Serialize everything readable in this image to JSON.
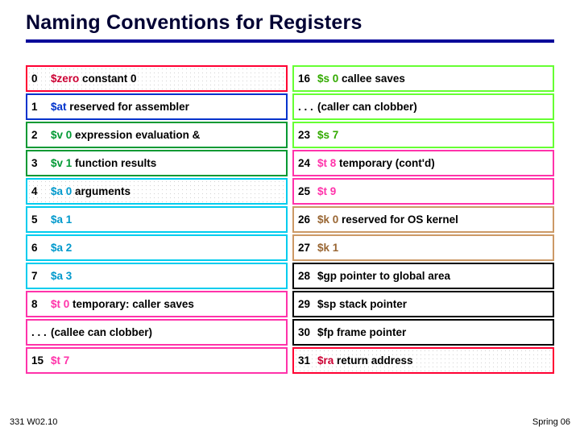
{
  "title": "Naming Conventions for Registers",
  "footer_left": "331 W02.10",
  "footer_right": "Spring 06",
  "colors": {
    "red": "#ff0033",
    "blue": "#0033cc",
    "green": "#009933",
    "cyan": "#00ccee",
    "pink": "#ff33aa",
    "lime": "#66ff33",
    "tan": "#cc9966",
    "black": "#000000"
  },
  "left": [
    {
      "num": "0",
      "reg": "$zero",
      "desc": " constant 0",
      "group": "red",
      "dot": true
    },
    {
      "num": "1",
      "reg": "$at",
      "desc": "  reserved for assembler",
      "group": "blue",
      "dot": false
    },
    {
      "num": "2",
      "reg": "$v 0",
      "desc": " expression evaluation &",
      "group": "green",
      "dot": false
    },
    {
      "num": "3",
      "reg": "$v 1",
      "desc": " function results",
      "group": "green",
      "dot": false
    },
    {
      "num": "4",
      "reg": "$a 0",
      "desc": " arguments",
      "group": "cyan",
      "dot": true
    },
    {
      "num": "5",
      "reg": "$a 1",
      "desc": "",
      "group": "cyan",
      "dot": false
    },
    {
      "num": "6",
      "reg": "$a 2",
      "desc": "",
      "group": "cyan",
      "dot": false
    },
    {
      "num": "7",
      "reg": "$a 3",
      "desc": "",
      "group": "cyan",
      "dot": false
    },
    {
      "num": "8",
      "reg": "$t 0",
      "desc": "  temporary: caller saves",
      "group": "pink",
      "dot": false
    },
    {
      "num": ". . .",
      "reg": "",
      "desc": "(callee can clobber)",
      "group": "pink",
      "dot": false
    },
    {
      "num": "15",
      "reg": "$t 7",
      "desc": "",
      "group": "pink",
      "dot": false
    }
  ],
  "right": [
    {
      "num": "16",
      "reg": "$s 0",
      "desc": " callee saves",
      "group": "lime",
      "dot": false
    },
    {
      "num": ". . .",
      "reg": "",
      "desc": "      (caller can clobber)",
      "group": "lime",
      "dot": false
    },
    {
      "num": "23",
      "reg": "$s 7",
      "desc": "",
      "group": "lime",
      "dot": false
    },
    {
      "num": "24",
      "reg": "$t 8",
      "desc": "   temporary (cont'd)",
      "group": "pink",
      "dot": false
    },
    {
      "num": "25",
      "reg": "$t 9",
      "desc": "",
      "group": "pink",
      "dot": false
    },
    {
      "num": "26",
      "reg": "$k 0",
      "desc": " reserved for OS kernel",
      "group": "tan",
      "dot": false
    },
    {
      "num": "27",
      "reg": "$k 1",
      "desc": "",
      "group": "tan",
      "dot": false
    },
    {
      "num": "28",
      "reg": "$gp",
      "desc": " pointer to global area",
      "group": "black",
      "dot": false
    },
    {
      "num": "29",
      "reg": "$sp",
      "desc": " stack pointer",
      "group": "black",
      "dot": false
    },
    {
      "num": "30",
      "reg": "$fp",
      "desc": "  frame pointer",
      "group": "black",
      "dot": false
    },
    {
      "num": "31",
      "reg": "$ra",
      "desc": "  return address",
      "group": "red",
      "dot": true
    }
  ]
}
